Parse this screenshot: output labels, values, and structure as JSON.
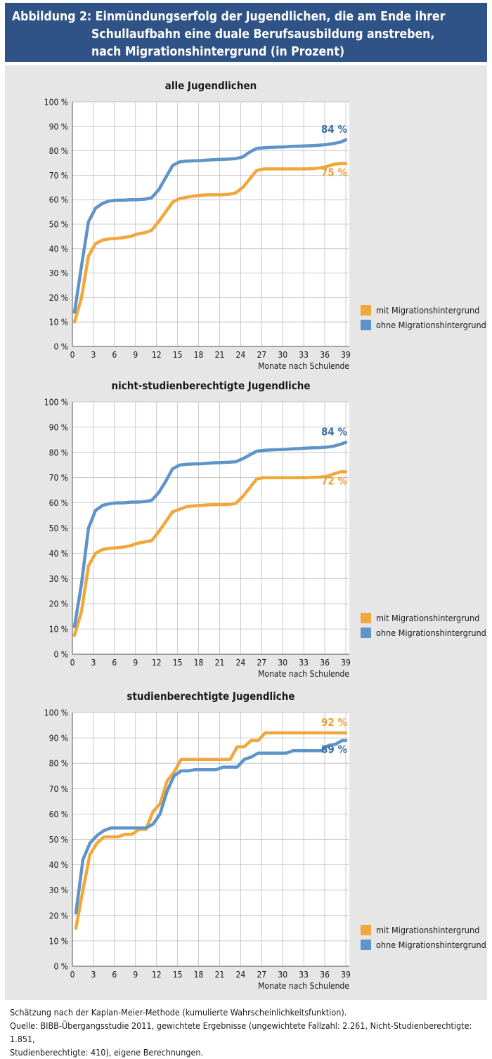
{
  "header": {
    "title_line1": "Abbildung 2: Einmündungserfolg der Jugendlichen, die am Ende ihrer",
    "title_line2": "Schullaufbahn eine duale Berufsausbildung anstreben,",
    "title_line3": "nach Migrationshintergrund (in Prozent)"
  },
  "colors": {
    "header_bg": "#2f5386",
    "panel_bg": "#e6e6e6",
    "orange": "#f0a83c",
    "blue": "#5f94c9",
    "blue_label": "#3c6ea4"
  },
  "chart_data": [
    {
      "type": "line",
      "title": "alle Jugendlichen",
      "xlabel": "Monate nach Schulende",
      "ylabel": "",
      "xlim": [
        0,
        39.5
      ],
      "ylim": [
        0,
        100
      ],
      "xticks": [
        0,
        3,
        6,
        9,
        12,
        15,
        18,
        21,
        24,
        27,
        30,
        33,
        36,
        39
      ],
      "yticks": [
        "0 %",
        "10 %",
        "20 %",
        "30 %",
        "40 %",
        "50 %",
        "60 %",
        "70 %",
        "80 %",
        "90 %",
        "100 %"
      ],
      "grid": true,
      "legend": "bottom-right",
      "series": [
        {
          "name": "mit Migrationshintergrund",
          "color": "#f0a83c",
          "end_label": "75 %",
          "x": [
            0.3,
            1.3,
            2.3,
            3.3,
            4.3,
            5.3,
            6.3,
            7.3,
            8.3,
            9.3,
            10.3,
            11.3,
            12.3,
            13.3,
            14.3,
            15.3,
            16.3,
            17.3,
            18.3,
            19.3,
            20.3,
            21.3,
            22.3,
            23.3,
            24.3,
            25.3,
            26.3,
            27.3,
            28.3,
            29.3,
            30.3,
            31.3,
            32.3,
            33.3,
            34.3,
            35.3,
            36.3,
            37.3,
            38.3,
            39.0
          ],
          "y": [
            10,
            20,
            37,
            42,
            43.5,
            44,
            44.2,
            44.5,
            45,
            46,
            46.5,
            47.5,
            51,
            55,
            59,
            60.5,
            61,
            61.5,
            61.8,
            62,
            62,
            62,
            62.2,
            62.8,
            65,
            68.5,
            72,
            72.6,
            72.6,
            72.6,
            72.6,
            72.6,
            72.6,
            72.6,
            72.7,
            73,
            73.6,
            74.5,
            74.8,
            74.8
          ]
        },
        {
          "name": "ohne Migrationshintergrund",
          "color": "#5f94c9",
          "end_label": "84 %",
          "x": [
            0.3,
            1.3,
            2.3,
            3.3,
            4.3,
            5.3,
            6.3,
            7.3,
            8.3,
            9.3,
            10.3,
            11.3,
            12.3,
            13.3,
            14.3,
            15.3,
            16.3,
            17.3,
            18.3,
            19.3,
            20.3,
            21.3,
            22.3,
            23.3,
            24.3,
            25.3,
            26.3,
            27.3,
            28.3,
            29.3,
            30.3,
            31.3,
            32.3,
            33.3,
            34.3,
            35.3,
            36.3,
            37.3,
            38.3,
            39.0
          ],
          "y": [
            14,
            33,
            51,
            56.5,
            58.5,
            59.5,
            59.8,
            59.8,
            60,
            60,
            60.2,
            60.8,
            64,
            69,
            74,
            75.5,
            75.8,
            75.9,
            76,
            76.2,
            76.4,
            76.5,
            76.6,
            76.8,
            77.5,
            79.5,
            81,
            81.2,
            81.4,
            81.5,
            81.6,
            81.8,
            81.9,
            82,
            82.1,
            82.3,
            82.6,
            83,
            83.6,
            84.5
          ]
        }
      ]
    },
    {
      "type": "line",
      "title": "nicht-studienberechtigte Jugendliche",
      "xlabel": "Monate nach Schulende",
      "ylabel": "",
      "xlim": [
        0,
        39.5
      ],
      "ylim": [
        0,
        100
      ],
      "xticks": [
        0,
        3,
        6,
        9,
        12,
        15,
        18,
        21,
        24,
        27,
        30,
        33,
        36,
        39
      ],
      "yticks": [
        "0 %",
        "10 %",
        "20 %",
        "30 %",
        "40 %",
        "50 %",
        "60 %",
        "70 %",
        "80 %",
        "90 %",
        "100 %"
      ],
      "grid": true,
      "legend": "bottom-right",
      "series": [
        {
          "name": "mit Migrationshintergrund",
          "color": "#f0a83c",
          "end_label": "72 %",
          "x": [
            0.3,
            1.3,
            2.3,
            3.3,
            4.3,
            5.3,
            6.3,
            7.3,
            8.3,
            9.3,
            10.3,
            11.3,
            12.3,
            13.3,
            14.3,
            15.3,
            16.3,
            17.3,
            18.3,
            19.3,
            20.3,
            21.3,
            22.3,
            23.3,
            24.3,
            25.3,
            26.3,
            27.3,
            28.3,
            29.3,
            30.3,
            31.3,
            32.3,
            33.3,
            34.3,
            35.3,
            36.3,
            37.3,
            38.3,
            39.0
          ],
          "y": [
            7.5,
            17,
            35,
            40,
            41.5,
            42,
            42.2,
            42.5,
            43,
            44,
            44.5,
            45,
            48.5,
            52.5,
            56.5,
            57.5,
            58.5,
            58.8,
            59,
            59.2,
            59.3,
            59.3,
            59.4,
            59.8,
            62.5,
            66,
            69.5,
            70,
            70,
            70,
            70,
            70,
            70,
            70,
            70.1,
            70.2,
            70.5,
            71.5,
            72.3,
            72.3
          ]
        },
        {
          "name": "ohne Migrationshintergrund",
          "color": "#5f94c9",
          "end_label": "84 %",
          "x": [
            0.3,
            1.3,
            2.3,
            3.3,
            4.3,
            5.3,
            6.3,
            7.3,
            8.3,
            9.3,
            10.3,
            11.3,
            12.3,
            13.3,
            14.3,
            15.3,
            16.3,
            17.3,
            18.3,
            19.3,
            20.3,
            21.3,
            22.3,
            23.3,
            24.3,
            25.3,
            26.3,
            27.3,
            28.3,
            29.3,
            30.3,
            31.3,
            32.3,
            33.3,
            34.3,
            35.3,
            36.3,
            37.3,
            38.3,
            39.0
          ],
          "y": [
            11,
            28,
            50,
            57,
            59,
            59.7,
            60,
            60,
            60.3,
            60.3,
            60.5,
            61,
            64,
            68.5,
            73.5,
            75,
            75.3,
            75.4,
            75.5,
            75.7,
            75.9,
            76,
            76.1,
            76.3,
            77.5,
            79,
            80.5,
            80.8,
            81,
            81.1,
            81.2,
            81.4,
            81.5,
            81.7,
            81.8,
            81.9,
            82.1,
            82.5,
            83.3,
            84
          ]
        }
      ]
    },
    {
      "type": "line",
      "title": "studienberechtigte Jugendliche",
      "xlabel": "Monate nach Schulende",
      "ylabel": "",
      "xlim": [
        0,
        39.5
      ],
      "ylim": [
        0,
        100
      ],
      "xticks": [
        0,
        3,
        6,
        9,
        12,
        15,
        18,
        21,
        24,
        27,
        30,
        33,
        36,
        39
      ],
      "yticks": [
        "0 %",
        "10 %",
        "20 %",
        "30 %",
        "40 %",
        "50 %",
        "60 %",
        "70 %",
        "80 %",
        "90 %",
        "100 %"
      ],
      "grid": true,
      "legend": "bottom-right",
      "series": [
        {
          "name": "mit Migrationshintergrund",
          "color": "#f0a83c",
          "end_label": "92 %",
          "x": [
            0.5,
            1.5,
            2.5,
            3.5,
            4.5,
            5.5,
            6.5,
            7.5,
            8.5,
            9.5,
            10.5,
            11.5,
            12.5,
            13.5,
            14.5,
            15.5,
            16.5,
            17.5,
            18.5,
            19.5,
            20.5,
            21.5,
            22.5,
            23.5,
            24.5,
            25.5,
            26.5,
            27.5,
            28.5,
            29.5,
            30.5,
            31.5,
            32.5,
            33.5,
            34.5,
            35.5,
            36.5,
            37.5,
            38.5,
            39.0
          ],
          "y": [
            15,
            30,
            44,
            48.5,
            51,
            51,
            51,
            52,
            52,
            54,
            54,
            61,
            64,
            73,
            76.5,
            81.5,
            81.5,
            81.5,
            81.5,
            81.5,
            81.5,
            81.5,
            81.5,
            86.5,
            86.5,
            89,
            89,
            92,
            92,
            92,
            92,
            92,
            92,
            92,
            92,
            92,
            92,
            92,
            92,
            92
          ]
        },
        {
          "name": "ohne Migrationshintergrund",
          "color": "#5f94c9",
          "end_label": "89 %",
          "x": [
            0.5,
            1.5,
            2.5,
            3.5,
            4.5,
            5.5,
            6.5,
            7.5,
            8.5,
            9.5,
            10.5,
            11.5,
            12.5,
            13.5,
            14.5,
            15.5,
            16.5,
            17.5,
            18.5,
            19.5,
            20.5,
            21.5,
            22.5,
            23.5,
            24.5,
            25.5,
            26.5,
            27.5,
            28.5,
            29.5,
            30.5,
            31.5,
            32.5,
            33.5,
            34.5,
            35.5,
            36.5,
            37.5,
            38.5,
            39.0
          ],
          "y": [
            21,
            42,
            48.5,
            51.5,
            53.5,
            54.5,
            54.5,
            54.5,
            54.5,
            54.5,
            54.5,
            56,
            60,
            69,
            75,
            77,
            77,
            77.5,
            77.5,
            77.5,
            77.5,
            78.5,
            78.5,
            78.5,
            81.5,
            82.5,
            84,
            84,
            84,
            84,
            84,
            85,
            85,
            85,
            85,
            85,
            87,
            87.5,
            89,
            89
          ]
        }
      ]
    }
  ],
  "footer": {
    "note": "Schätzung nach der Kaplan-Meier-Methode (kumulierte Wahrscheinlichkeitsfunktion).",
    "source_line1": "Quelle: BIBB-Übergangsstudie 2011, gewichtete Ergebnisse (ungewichtete Fallzahl: 2.261, Nicht-Studienberechtigte: 1.851,",
    "source_line2": "Studienberechtigte: 410), eigene Berechnungen."
  }
}
